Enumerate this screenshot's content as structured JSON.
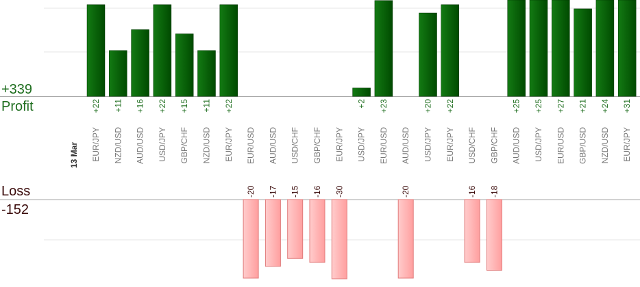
{
  "summary": {
    "profit_total": "+339",
    "profit_label": "Profit",
    "loss_label": "Loss",
    "loss_total": "-152"
  },
  "colors": {
    "profit_bar": "#0a6e0a",
    "profit_bar_dark": "#004d00",
    "profit_text": "#1f6e1f",
    "loss_bar": "#ffb3b3",
    "loss_bar_border": "#e07b7b",
    "loss_text": "#3a0a0a",
    "grid": "#e6e6e6",
    "axis": "#999999",
    "category_text": "#777777"
  },
  "chart_data": {
    "type": "bar",
    "date_label": "13 Mar",
    "categories": [
      "EUR/JPY",
      "NZD/USD",
      "AUD/USD",
      "USD/JPY",
      "GBP/CHF",
      "NZD/USD",
      "EUR/JPY",
      "EUR/USD",
      "AUD/USD",
      "USD/CHF",
      "GBP/CHF",
      "EUR/JPY",
      "USD/JPY",
      "EUR/USD",
      "AUD/USD",
      "USD/JPY",
      "EUR/JPY",
      "USD/CHF",
      "GBP/CHF",
      "AUD/USD",
      "USD/JPY",
      "EUR/USD",
      "GBP/USD",
      "NZD/USD",
      "EUR/JPY"
    ],
    "series": [
      {
        "values": [
          22,
          11,
          16,
          22,
          15,
          11,
          22,
          -20,
          -17,
          -15,
          -16,
          -30,
          2,
          23,
          -20,
          20,
          22,
          -16,
          -18,
          25,
          25,
          27,
          21,
          24,
          31
        ]
      }
    ],
    "profit_labels": [
      "+22",
      "+11",
      "+16",
      "+22",
      "+15",
      "+11",
      "+22",
      "",
      "",
      "",
      "",
      "",
      "+2",
      "+23",
      "",
      "+20",
      "+22",
      "",
      "",
      "+25",
      "+25",
      "+27",
      "+21",
      "+24",
      "+31"
    ],
    "loss_labels": [
      "",
      "",
      "",
      "",
      "",
      "",
      "",
      "-20",
      "-17",
      "-15",
      "-16",
      "-30",
      "",
      "",
      "-20",
      "",
      "",
      "-16",
      "-18",
      "",
      "",
      "",
      "",
      "",
      ""
    ],
    "ylim_profit": [
      0,
      22
    ],
    "ylim_loss": [
      -20,
      0
    ]
  }
}
